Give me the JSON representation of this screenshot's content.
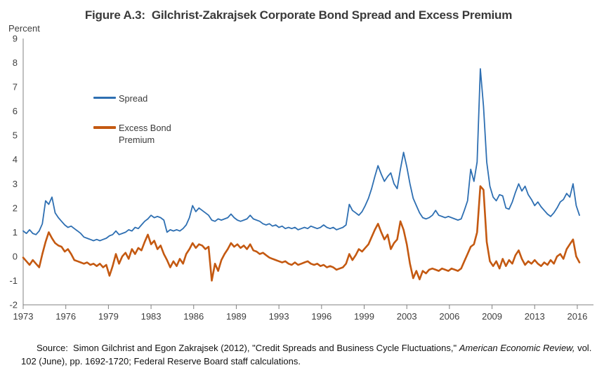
{
  "title": "Figure A.3:  Gilchrist-Zakrajsek Corporate Bond Spread and Excess Premium",
  "y_axis_unit_label": "Percent",
  "source": {
    "prefix": "Source:  Simon Gilchrist and Egon Zakrajsek (2012), \"Credit Spreads and Business Cycle Fluctuations,\" ",
    "italic": "American Economic Review,",
    "suffix": " vol. 102 (June), pp. 1692-1720; Federal Reserve Board staff calculations."
  },
  "chart_data": {
    "type": "line",
    "title": "Gilchrist-Zakrajsek Corporate Bond Spread and Excess Premium",
    "xlabel": "",
    "ylabel": "Percent",
    "xlim": [
      1973,
      2017.6
    ],
    "ylim": [
      -2,
      9
    ],
    "grid": false,
    "legend_position": "upper-left-inside",
    "axis_color": "#808080",
    "label_color": "#3f3f3f",
    "x_ticks": {
      "positions": [
        1973.0,
        1976.3333,
        1979.6667,
        1983.0,
        1986.3333,
        1989.6667,
        1993.0,
        1996.3333,
        1999.6667,
        2003.0,
        2006.3333,
        2009.6667,
        2013.0,
        2016.3333
      ],
      "labels": [
        "1973",
        "1976",
        "1979",
        "1983",
        "1986",
        "1989",
        "1993",
        "1996",
        "1999",
        "2003",
        "2006",
        "2009",
        "2013",
        "2016"
      ]
    },
    "y_ticks": [
      -2,
      -1,
      0,
      1,
      2,
      3,
      4,
      5,
      6,
      7,
      8,
      9
    ],
    "x_start": 1973.0,
    "x_step": 0.25,
    "series": [
      {
        "name": "Spread",
        "color": "#2E6FB2",
        "line_width": 1.8,
        "values": [
          1.05,
          0.95,
          1.1,
          0.95,
          0.9,
          1.05,
          1.35,
          2.3,
          2.15,
          2.45,
          1.8,
          1.6,
          1.45,
          1.3,
          1.2,
          1.25,
          1.15,
          1.05,
          0.95,
          0.8,
          0.75,
          0.7,
          0.65,
          0.7,
          0.65,
          0.7,
          0.75,
          0.85,
          0.9,
          1.05,
          0.9,
          0.95,
          1.0,
          1.1,
          1.05,
          1.2,
          1.15,
          1.3,
          1.45,
          1.55,
          1.7,
          1.6,
          1.65,
          1.6,
          1.5,
          1.0,
          1.1,
          1.05,
          1.1,
          1.05,
          1.15,
          1.3,
          1.6,
          2.1,
          1.85,
          2.0,
          1.9,
          1.8,
          1.7,
          1.5,
          1.45,
          1.55,
          1.5,
          1.55,
          1.6,
          1.75,
          1.6,
          1.5,
          1.45,
          1.5,
          1.55,
          1.7,
          1.55,
          1.5,
          1.45,
          1.35,
          1.3,
          1.35,
          1.25,
          1.3,
          1.2,
          1.25,
          1.15,
          1.2,
          1.15,
          1.2,
          1.1,
          1.15,
          1.2,
          1.15,
          1.25,
          1.2,
          1.15,
          1.2,
          1.3,
          1.2,
          1.15,
          1.2,
          1.1,
          1.15,
          1.2,
          1.3,
          2.15,
          1.9,
          1.8,
          1.7,
          1.85,
          2.1,
          2.4,
          2.8,
          3.3,
          3.75,
          3.4,
          3.1,
          3.3,
          3.45,
          3.0,
          2.8,
          3.6,
          4.3,
          3.7,
          3.0,
          2.4,
          2.1,
          1.8,
          1.6,
          1.55,
          1.6,
          1.7,
          1.9,
          1.7,
          1.65,
          1.6,
          1.65,
          1.6,
          1.55,
          1.5,
          1.55,
          1.9,
          2.3,
          3.6,
          3.1,
          3.9,
          7.75,
          6.2,
          3.9,
          2.9,
          2.45,
          2.3,
          2.55,
          2.5,
          2.0,
          1.95,
          2.25,
          2.65,
          3.0,
          2.7,
          2.9,
          2.55,
          2.35,
          2.1,
          2.25,
          2.05,
          1.9,
          1.75,
          1.65,
          1.8,
          2.0,
          2.25,
          2.35,
          2.6,
          2.45,
          3.0,
          2.1,
          1.7
        ]
      },
      {
        "name": "Excess Bond Premium",
        "color": "#C45911",
        "line_width": 2.6,
        "values": [
          -0.05,
          -0.2,
          -0.35,
          -0.15,
          -0.3,
          -0.45,
          0.1,
          0.6,
          1.0,
          0.75,
          0.55,
          0.45,
          0.4,
          0.2,
          0.3,
          0.1,
          -0.15,
          -0.2,
          -0.25,
          -0.3,
          -0.25,
          -0.35,
          -0.3,
          -0.4,
          -0.3,
          -0.45,
          -0.35,
          -0.8,
          -0.4,
          0.1,
          -0.3,
          0.0,
          0.15,
          -0.1,
          0.3,
          0.1,
          0.35,
          0.25,
          0.6,
          0.9,
          0.5,
          0.65,
          0.3,
          0.45,
          0.1,
          -0.15,
          -0.45,
          -0.2,
          -0.4,
          -0.1,
          -0.3,
          0.1,
          0.3,
          0.55,
          0.35,
          0.5,
          0.45,
          0.3,
          0.4,
          -1.0,
          -0.3,
          -0.6,
          -0.15,
          0.1,
          0.3,
          0.55,
          0.4,
          0.5,
          0.35,
          0.45,
          0.3,
          0.5,
          0.25,
          0.2,
          0.1,
          0.15,
          0.05,
          -0.05,
          -0.1,
          -0.15,
          -0.2,
          -0.25,
          -0.2,
          -0.3,
          -0.35,
          -0.25,
          -0.35,
          -0.3,
          -0.25,
          -0.2,
          -0.3,
          -0.35,
          -0.3,
          -0.4,
          -0.35,
          -0.45,
          -0.4,
          -0.45,
          -0.55,
          -0.5,
          -0.45,
          -0.3,
          0.1,
          -0.15,
          0.05,
          0.3,
          0.2,
          0.35,
          0.5,
          0.8,
          1.1,
          1.35,
          1.0,
          0.7,
          0.9,
          0.3,
          0.55,
          0.7,
          1.45,
          1.1,
          0.5,
          -0.3,
          -0.9,
          -0.6,
          -0.95,
          -0.6,
          -0.7,
          -0.55,
          -0.5,
          -0.55,
          -0.6,
          -0.5,
          -0.55,
          -0.6,
          -0.5,
          -0.55,
          -0.6,
          -0.5,
          -0.2,
          0.1,
          0.4,
          0.5,
          1.0,
          2.9,
          2.75,
          0.6,
          -0.2,
          -0.4,
          -0.2,
          -0.5,
          -0.1,
          -0.4,
          -0.15,
          -0.3,
          0.05,
          0.25,
          -0.1,
          -0.35,
          -0.2,
          -0.3,
          -0.15,
          -0.3,
          -0.4,
          -0.25,
          -0.35,
          -0.15,
          -0.3,
          0.0,
          0.1,
          -0.1,
          0.3,
          0.5,
          0.7,
          0.0,
          -0.25
        ]
      }
    ]
  }
}
